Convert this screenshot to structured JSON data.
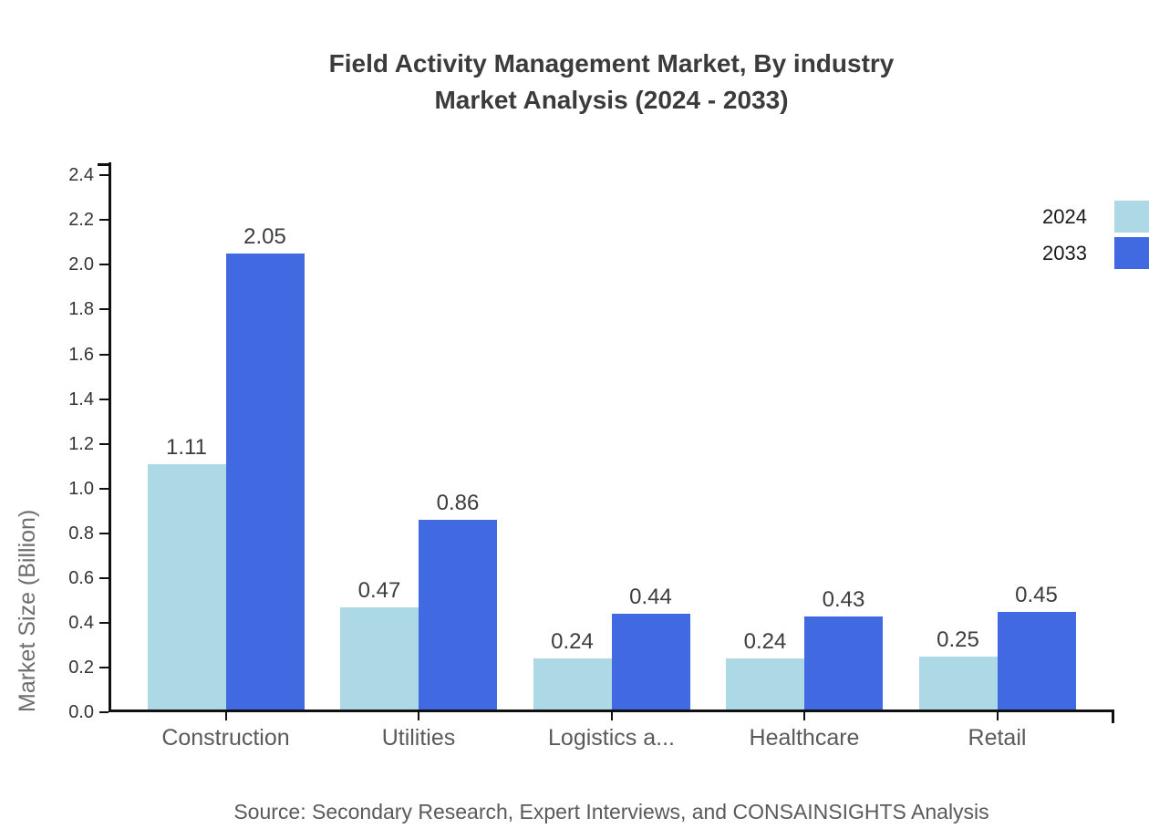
{
  "title": {
    "line1": "Field Activity Management Market, By industry",
    "line2": "Market Analysis (2024 - 2033)"
  },
  "chart_data": {
    "type": "bar",
    "title": "Field Activity Management Market, By industry Market Analysis (2024 - 2033)",
    "categories": [
      "Construction",
      "Utilities",
      "Logistics a...",
      "Healthcare",
      "Retail"
    ],
    "series": [
      {
        "name": "2024",
        "color": "#ADD8E6",
        "values": [
          1.11,
          0.47,
          0.24,
          0.24,
          0.25
        ]
      },
      {
        "name": "2033",
        "color": "#4169E1",
        "values": [
          2.05,
          0.86,
          0.44,
          0.43,
          0.45
        ]
      }
    ],
    "xlabel": "",
    "ylabel": "Market Size (Billion)",
    "ylim": [
      0,
      2.45
    ],
    "yticks": [
      "0.0",
      "0.2",
      "0.4",
      "0.6",
      "0.8",
      "1.0",
      "1.2",
      "1.4",
      "1.6",
      "1.8",
      "2.0",
      "2.2",
      "2.4"
    ],
    "grid": false,
    "legend_position": "top-right",
    "bar_value_labels": true,
    "value_label_format": "0.00"
  },
  "legend": {
    "items": [
      {
        "label": "2024",
        "color": "#ADD8E6"
      },
      {
        "label": "2033",
        "color": "#4169E1"
      }
    ]
  },
  "source": "Source: Secondary Research, Expert Interviews, and CONSAINSIGHTS Analysis",
  "colors": {
    "series_2024": "#ADD8E6",
    "series_2033": "#4169E1",
    "title_text": "#3B3B3B",
    "axis": "#111111",
    "tick_label": "#333333",
    "category_label": "#5A5A5A",
    "value_label": "#3D3D3D",
    "axis_title": "#6E6E6E",
    "legend_text": "#1A1A1A",
    "source_text": "#5A5A5A",
    "background": "#FFFFFF"
  }
}
